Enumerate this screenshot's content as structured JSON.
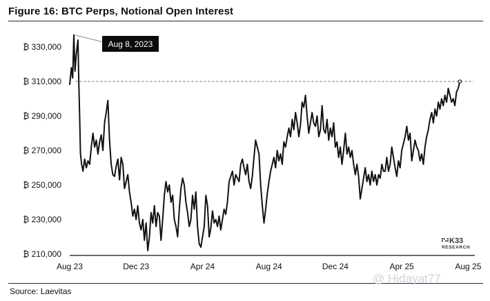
{
  "page": {
    "title": "Figure 16: BTC Perps, Notional Open Interest",
    "source": "Source: Laevitas",
    "watermark": "@ Hidayat77",
    "logo": {
      "mark": "K33",
      "sub": "RESEARCH"
    }
  },
  "chart_data": {
    "type": "line",
    "title": "Figure 16: BTC Perps, Notional Open Interest",
    "xlabel": "",
    "ylabel": "",
    "grid": false,
    "x_ticks": [
      "Aug 23",
      "Dec 23",
      "Apr 24",
      "Aug 24",
      "Dec 24",
      "Apr 25",
      "Aug 25"
    ],
    "y_ticks": [
      "₿ 210,000",
      "₿ 230,000",
      "₿ 250,000",
      "₿ 270,000",
      "₿ 290,000",
      "₿ 310,000",
      "₿ 330,000"
    ],
    "ylim": [
      210000,
      338000
    ],
    "xlim": [
      0,
      24.4
    ],
    "x_unit": "months since Aug 23",
    "reference_line": {
      "value": 310000,
      "style": "dashed"
    },
    "annotation": {
      "label": "Aug 8, 2023",
      "x": 0.25,
      "y": 337000
    },
    "series": [
      {
        "color": "#111111",
        "points": [
          [
            0.0,
            308000
          ],
          [
            0.1,
            318000
          ],
          [
            0.18,
            312000
          ],
          [
            0.25,
            337000
          ],
          [
            0.32,
            316000
          ],
          [
            0.4,
            326000
          ],
          [
            0.5,
            334000
          ],
          [
            0.55,
            309000
          ],
          [
            0.6,
            290000
          ],
          [
            0.65,
            268000
          ],
          [
            0.72,
            262000
          ],
          [
            0.8,
            258000
          ],
          [
            0.9,
            265000
          ],
          [
            1.0,
            260000
          ],
          [
            1.1,
            264000
          ],
          [
            1.2,
            262000
          ],
          [
            1.3,
            272000
          ],
          [
            1.4,
            280000
          ],
          [
            1.5,
            272000
          ],
          [
            1.6,
            276000
          ],
          [
            1.7,
            268000
          ],
          [
            1.8,
            275000
          ],
          [
            1.9,
            279000
          ],
          [
            2.0,
            270000
          ],
          [
            2.1,
            286000
          ],
          [
            2.2,
            292000
          ],
          [
            2.3,
            299000
          ],
          [
            2.4,
            276000
          ],
          [
            2.5,
            262000
          ],
          [
            2.6,
            256000
          ],
          [
            2.7,
            255000
          ],
          [
            2.8,
            261000
          ],
          [
            2.9,
            265000
          ],
          [
            3.0,
            253000
          ],
          [
            3.1,
            266000
          ],
          [
            3.2,
            262000
          ],
          [
            3.3,
            248000
          ],
          [
            3.4,
            252000
          ],
          [
            3.5,
            256000
          ],
          [
            3.6,
            246000
          ],
          [
            3.7,
            240000
          ],
          [
            3.8,
            232000
          ],
          [
            3.9,
            236000
          ],
          [
            4.0,
            230000
          ],
          [
            4.1,
            238000
          ],
          [
            4.2,
            228000
          ],
          [
            4.3,
            224000
          ],
          [
            4.4,
            230000
          ],
          [
            4.5,
            218000
          ],
          [
            4.6,
            228000
          ],
          [
            4.7,
            212000
          ],
          [
            4.8,
            220000
          ],
          [
            4.9,
            234000
          ],
          [
            5.0,
            228000
          ],
          [
            5.1,
            238000
          ],
          [
            5.2,
            226000
          ],
          [
            5.3,
            234000
          ],
          [
            5.4,
            232000
          ],
          [
            5.5,
            218000
          ],
          [
            5.6,
            230000
          ],
          [
            5.7,
            244000
          ],
          [
            5.8,
            252000
          ],
          [
            5.9,
            246000
          ],
          [
            6.0,
            250000
          ],
          [
            6.1,
            240000
          ],
          [
            6.2,
            244000
          ],
          [
            6.3,
            230000
          ],
          [
            6.4,
            226000
          ],
          [
            6.5,
            220000
          ],
          [
            6.6,
            236000
          ],
          [
            6.7,
            248000
          ],
          [
            6.8,
            254000
          ],
          [
            6.9,
            250000
          ],
          [
            7.0,
            240000
          ],
          [
            7.1,
            234000
          ],
          [
            7.2,
            226000
          ],
          [
            7.3,
            230000
          ],
          [
            7.4,
            244000
          ],
          [
            7.5,
            236000
          ],
          [
            7.6,
            246000
          ],
          [
            7.7,
            226000
          ],
          [
            7.8,
            216000
          ],
          [
            7.9,
            214000
          ],
          [
            8.0,
            220000
          ],
          [
            8.1,
            226000
          ],
          [
            8.2,
            244000
          ],
          [
            8.3,
            238000
          ],
          [
            8.4,
            220000
          ],
          [
            8.5,
            225000
          ],
          [
            8.6,
            235000
          ],
          [
            8.7,
            228000
          ],
          [
            8.8,
            230000
          ],
          [
            8.9,
            226000
          ],
          [
            9.0,
            232000
          ],
          [
            9.1,
            224000
          ],
          [
            9.2,
            230000
          ],
          [
            9.3,
            236000
          ],
          [
            9.4,
            233000
          ],
          [
            9.5,
            240000
          ],
          [
            9.6,
            252000
          ],
          [
            9.7,
            255000
          ],
          [
            9.8,
            258000
          ],
          [
            9.9,
            250000
          ],
          [
            10.0,
            256000
          ],
          [
            10.1,
            254000
          ],
          [
            10.2,
            252000
          ],
          [
            10.3,
            262000
          ],
          [
            10.4,
            265000
          ],
          [
            10.5,
            260000
          ],
          [
            10.6,
            256000
          ],
          [
            10.7,
            262000
          ],
          [
            10.8,
            252000
          ],
          [
            10.9,
            248000
          ],
          [
            11.0,
            255000
          ],
          [
            11.1,
            266000
          ],
          [
            11.2,
            276000
          ],
          [
            11.3,
            272000
          ],
          [
            11.4,
            268000
          ],
          [
            11.5,
            250000
          ],
          [
            11.6,
            238000
          ],
          [
            11.7,
            228000
          ],
          [
            11.8,
            236000
          ],
          [
            11.9,
            245000
          ],
          [
            12.0,
            252000
          ],
          [
            12.1,
            258000
          ],
          [
            12.2,
            262000
          ],
          [
            12.3,
            266000
          ],
          [
            12.4,
            260000
          ],
          [
            12.5,
            270000
          ],
          [
            12.6,
            264000
          ],
          [
            12.7,
            268000
          ],
          [
            12.8,
            262000
          ],
          [
            12.9,
            275000
          ],
          [
            13.0,
            272000
          ],
          [
            13.1,
            278000
          ],
          [
            13.2,
            283000
          ],
          [
            13.3,
            278000
          ],
          [
            13.4,
            288000
          ],
          [
            13.5,
            282000
          ],
          [
            13.6,
            292000
          ],
          [
            13.7,
            286000
          ],
          [
            13.8,
            278000
          ],
          [
            13.9,
            285000
          ],
          [
            14.0,
            298000
          ],
          [
            14.1,
            295000
          ],
          [
            14.2,
            302000
          ],
          [
            14.3,
            290000
          ],
          [
            14.4,
            280000
          ],
          [
            14.5,
            286000
          ],
          [
            14.6,
            292000
          ],
          [
            14.7,
            286000
          ],
          [
            14.8,
            284000
          ],
          [
            14.9,
            290000
          ],
          [
            15.0,
            278000
          ],
          [
            15.1,
            282000
          ],
          [
            15.2,
            296000
          ],
          [
            15.3,
            282000
          ],
          [
            15.4,
            280000
          ],
          [
            15.5,
            288000
          ],
          [
            15.6,
            276000
          ],
          [
            15.7,
            283000
          ],
          [
            15.8,
            278000
          ],
          [
            15.9,
            286000
          ],
          [
            16.0,
            272000
          ],
          [
            16.1,
            275000
          ],
          [
            16.2,
            266000
          ],
          [
            16.3,
            272000
          ],
          [
            16.4,
            262000
          ],
          [
            16.5,
            270000
          ],
          [
            16.6,
            280000
          ],
          [
            16.7,
            268000
          ],
          [
            16.8,
            272000
          ],
          [
            16.9,
            266000
          ],
          [
            17.0,
            270000
          ],
          [
            17.1,
            262000
          ],
          [
            17.2,
            256000
          ],
          [
            17.3,
            262000
          ],
          [
            17.4,
            255000
          ],
          [
            17.5,
            242000
          ],
          [
            17.6,
            248000
          ],
          [
            17.7,
            254000
          ],
          [
            17.8,
            260000
          ],
          [
            17.9,
            252000
          ],
          [
            18.0,
            256000
          ],
          [
            18.1,
            250000
          ],
          [
            18.2,
            258000
          ],
          [
            18.3,
            252000
          ],
          [
            18.4,
            256000
          ],
          [
            18.5,
            250000
          ],
          [
            18.6,
            256000
          ],
          [
            18.7,
            254000
          ],
          [
            18.8,
            262000
          ],
          [
            18.9,
            258000
          ],
          [
            19.0,
            258000
          ],
          [
            19.1,
            266000
          ],
          [
            19.2,
            258000
          ],
          [
            19.3,
            262000
          ],
          [
            19.4,
            272000
          ],
          [
            19.5,
            266000
          ],
          [
            19.6,
            260000
          ],
          [
            19.7,
            255000
          ],
          [
            19.8,
            264000
          ],
          [
            19.9,
            260000
          ],
          [
            20.0,
            270000
          ],
          [
            20.1,
            274000
          ],
          [
            20.2,
            278000
          ],
          [
            20.3,
            284000
          ],
          [
            20.4,
            276000
          ],
          [
            20.5,
            280000
          ],
          [
            20.6,
            264000
          ],
          [
            20.7,
            270000
          ],
          [
            20.8,
            276000
          ],
          [
            20.9,
            272000
          ],
          [
            21.0,
            270000
          ],
          [
            21.1,
            264000
          ],
          [
            21.2,
            268000
          ],
          [
            21.3,
            262000
          ],
          [
            21.4,
            272000
          ],
          [
            21.5,
            278000
          ],
          [
            21.6,
            282000
          ],
          [
            21.7,
            288000
          ],
          [
            21.8,
            292000
          ],
          [
            21.9,
            286000
          ],
          [
            22.0,
            294000
          ],
          [
            22.1,
            290000
          ],
          [
            22.2,
            298000
          ],
          [
            22.3,
            294000
          ],
          [
            22.4,
            300000
          ],
          [
            22.5,
            296000
          ],
          [
            22.6,
            302000
          ],
          [
            22.7,
            298000
          ],
          [
            22.8,
            306000
          ],
          [
            22.9,
            302000
          ],
          [
            23.0,
            298000
          ],
          [
            23.1,
            300000
          ],
          [
            23.2,
            296000
          ],
          [
            23.3,
            304000
          ],
          [
            23.4,
            306000
          ],
          [
            23.5,
            310000
          ]
        ]
      }
    ]
  }
}
